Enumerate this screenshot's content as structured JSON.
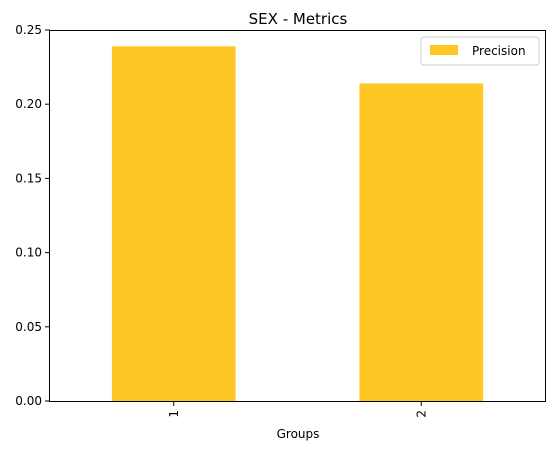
{
  "chart_data": {
    "type": "bar",
    "title": "SEX - Metrics",
    "xlabel": "Groups",
    "ylabel": "",
    "categories": [
      "1",
      "2"
    ],
    "series": [
      {
        "name": "Precision",
        "values": [
          0.239,
          0.214
        ]
      }
    ],
    "ylim": [
      0,
      0.25
    ],
    "yticks": [
      "0.00",
      "0.05",
      "0.10",
      "0.15",
      "0.20",
      "0.25"
    ],
    "grid": false,
    "legend_position": "top-right",
    "colors": {
      "series": "#FFC726",
      "axis": "#000000",
      "legend_border": "#cccccc"
    }
  }
}
